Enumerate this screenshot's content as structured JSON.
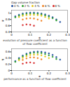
{
  "chart_data": [
    {
      "type": "scatter",
      "caption": "evolution of pressure coefficient as a function of flow coefficient",
      "x_label": "φ",
      "y_label": "ψ",
      "legend": "top",
      "legend_title": "Gap volume fraction",
      "xlim": [
        0,
        0.3
      ],
      "xticks": [
        0,
        0.1,
        0.2,
        0.3
      ],
      "ylim": [
        0.4,
        1.1
      ],
      "yticks": [
        0.4,
        0.6,
        0.8,
        1
      ],
      "marker": "circle",
      "series": [
        {
          "name": "0 %",
          "color": "#1f4e9e",
          "x": [
            0.02,
            0.04,
            0.06,
            0.08,
            0.1,
            0.12,
            0.14,
            0.16,
            0.18,
            0.2,
            0.22,
            0.24,
            0.26
          ],
          "values": [
            0.9,
            0.95,
            0.99,
            1.01,
            1.02,
            1.02,
            1.01,
            0.99,
            0.96,
            0.92,
            0.87,
            0.8,
            0.72
          ]
        },
        {
          "name": "2 %",
          "color": "#2ca02c",
          "x": [
            0.02,
            0.04,
            0.06,
            0.08,
            0.1,
            0.12,
            0.14,
            0.16,
            0.18,
            0.2,
            0.22,
            0.24
          ],
          "values": [
            0.87,
            0.92,
            0.96,
            0.98,
            0.99,
            0.99,
            0.98,
            0.96,
            0.93,
            0.89,
            0.84,
            0.77
          ]
        },
        {
          "name": "4 %",
          "color": "#e6c619",
          "x": [
            0.04,
            0.06,
            0.08,
            0.1,
            0.12,
            0.14,
            0.16,
            0.18,
            0.2
          ],
          "values": [
            0.88,
            0.92,
            0.94,
            0.95,
            0.95,
            0.94,
            0.92,
            0.88,
            0.83
          ]
        },
        {
          "name": "6 %",
          "color": "#f08020",
          "x": [
            0.06,
            0.08,
            0.1,
            0.12,
            0.14,
            0.16
          ],
          "values": [
            0.8,
            0.83,
            0.84,
            0.83,
            0.8,
            0.76
          ]
        },
        {
          "name": "8 %",
          "color": "#d62728",
          "x": [
            0.06,
            0.08,
            0.1,
            0.12
          ],
          "values": [
            0.62,
            0.64,
            0.63,
            0.6
          ]
        }
      ]
    },
    {
      "type": "scatter",
      "caption": "performance as a function of flow coefficient",
      "x_label": "φ",
      "y_label": "η",
      "xlim": [
        0,
        0.3
      ],
      "xticks": [
        0,
        0.1,
        0.2,
        0.3
      ],
      "ylim": [
        0,
        0.7
      ],
      "yticks": [
        0,
        0.2,
        0.4,
        0.6
      ],
      "marker": "circle",
      "series": [
        {
          "name": "0 %",
          "color": "#1f4e9e",
          "x": [
            0.02,
            0.04,
            0.06,
            0.08,
            0.1,
            0.12,
            0.14,
            0.16,
            0.18,
            0.2,
            0.22,
            0.24,
            0.26
          ],
          "values": [
            0.3,
            0.4,
            0.48,
            0.54,
            0.58,
            0.6,
            0.61,
            0.6,
            0.58,
            0.55,
            0.5,
            0.43,
            0.35
          ]
        },
        {
          "name": "2 %",
          "color": "#2ca02c",
          "x": [
            0.02,
            0.04,
            0.06,
            0.08,
            0.1,
            0.12,
            0.14,
            0.16,
            0.18,
            0.2,
            0.22,
            0.24
          ],
          "values": [
            0.28,
            0.37,
            0.45,
            0.51,
            0.55,
            0.57,
            0.57,
            0.56,
            0.53,
            0.49,
            0.44,
            0.37
          ]
        },
        {
          "name": "4 %",
          "color": "#e6c619",
          "x": [
            0.04,
            0.06,
            0.08,
            0.1,
            0.12,
            0.14,
            0.16,
            0.18,
            0.2
          ],
          "values": [
            0.33,
            0.41,
            0.46,
            0.5,
            0.51,
            0.51,
            0.49,
            0.45,
            0.4
          ]
        },
        {
          "name": "6 %",
          "color": "#f08020",
          "x": [
            0.06,
            0.08,
            0.1,
            0.12,
            0.14,
            0.16
          ],
          "values": [
            0.34,
            0.39,
            0.42,
            0.42,
            0.4,
            0.36
          ]
        },
        {
          "name": "8 %",
          "color": "#d62728",
          "x": [
            0.06,
            0.08,
            0.1,
            0.12
          ],
          "values": [
            0.22,
            0.25,
            0.26,
            0.24
          ]
        }
      ]
    }
  ]
}
